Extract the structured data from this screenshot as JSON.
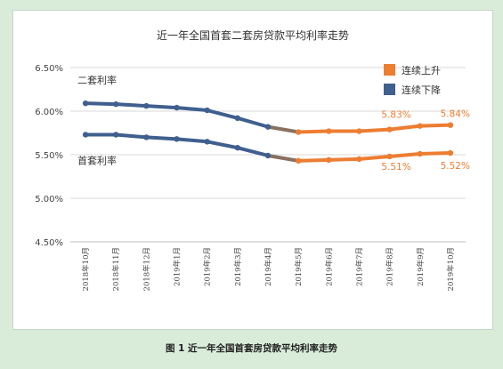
{
  "caption": "图 1  近一年全国首套房贷款平均利率走势",
  "colors": {
    "up": "#ed7d31",
    "down": "#3f5f8f",
    "grid": "#d9d9d9"
  },
  "chart_data": {
    "type": "line",
    "title": "近一年全国首套二套房贷款平均利率走势",
    "categories": [
      "2018年10月",
      "2018年11月",
      "2018年12月",
      "2019年1月",
      "2019年2月",
      "2019年3月",
      "2019年4月",
      "2019年5月",
      "2019年6月",
      "2019年7月",
      "2019年8月",
      "2019年9月",
      "2019年10月"
    ],
    "y_ticks": [
      "6.50%",
      "6.00%",
      "5.50%",
      "5.00%",
      "4.50%"
    ],
    "ylim": [
      4.5,
      6.5
    ],
    "grid": true,
    "legend_position": "top-right",
    "legend": [
      {
        "label": "连续上升",
        "color": "#ed7d31"
      },
      {
        "label": "连续下降",
        "color": "#3f5f8f"
      }
    ],
    "series": [
      {
        "name": "二套利率",
        "values": [
          6.09,
          6.08,
          6.06,
          6.04,
          6.01,
          5.92,
          5.82,
          5.76,
          5.77,
          5.77,
          5.79,
          5.83,
          5.84
        ]
      },
      {
        "name": "首套利率",
        "values": [
          5.73,
          5.73,
          5.7,
          5.68,
          5.65,
          5.58,
          5.49,
          5.43,
          5.44,
          5.45,
          5.48,
          5.51,
          5.52
        ]
      }
    ],
    "down_segment_end_index": 6,
    "data_labels": [
      {
        "text": "5.83%",
        "series": 0,
        "index": 11
      },
      {
        "text": "5.84%",
        "series": 0,
        "index": 12
      },
      {
        "text": "5.51%",
        "series": 1,
        "index": 11
      },
      {
        "text": "5.52%",
        "series": 1,
        "index": 12
      }
    ]
  }
}
